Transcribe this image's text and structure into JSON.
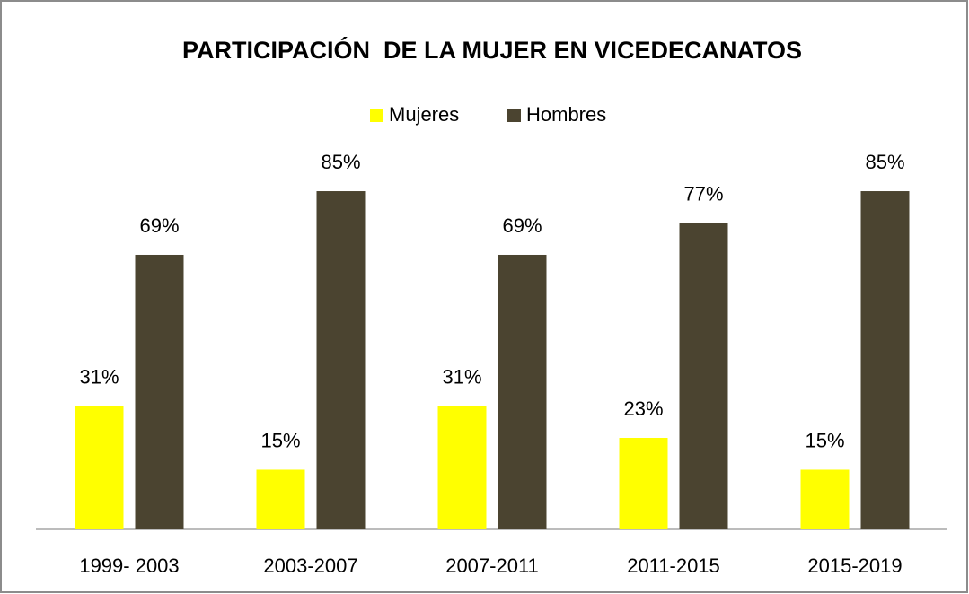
{
  "chart_data": {
    "type": "bar",
    "title": "PARTICIPACIÓN  DE LA MUJER EN VICEDECANATOS",
    "categories": [
      "1999- 2003",
      "2003-2007",
      "2007-2011",
      "2011-2015",
      "2015-2019"
    ],
    "series": [
      {
        "name": "Mujeres",
        "color": "#ffff00",
        "values": [
          31,
          15,
          31,
          23,
          15
        ],
        "value_labels": [
          "31%",
          "15%",
          "31%",
          "23%",
          "15%"
        ]
      },
      {
        "name": "Hombres",
        "color": "#4b4430",
        "values": [
          69,
          85,
          69,
          77,
          85
        ],
        "value_labels": [
          "69%",
          "85%",
          "69%",
          "77%",
          "85%"
        ]
      }
    ],
    "ylim": [
      0,
      100
    ],
    "legend": "top"
  }
}
